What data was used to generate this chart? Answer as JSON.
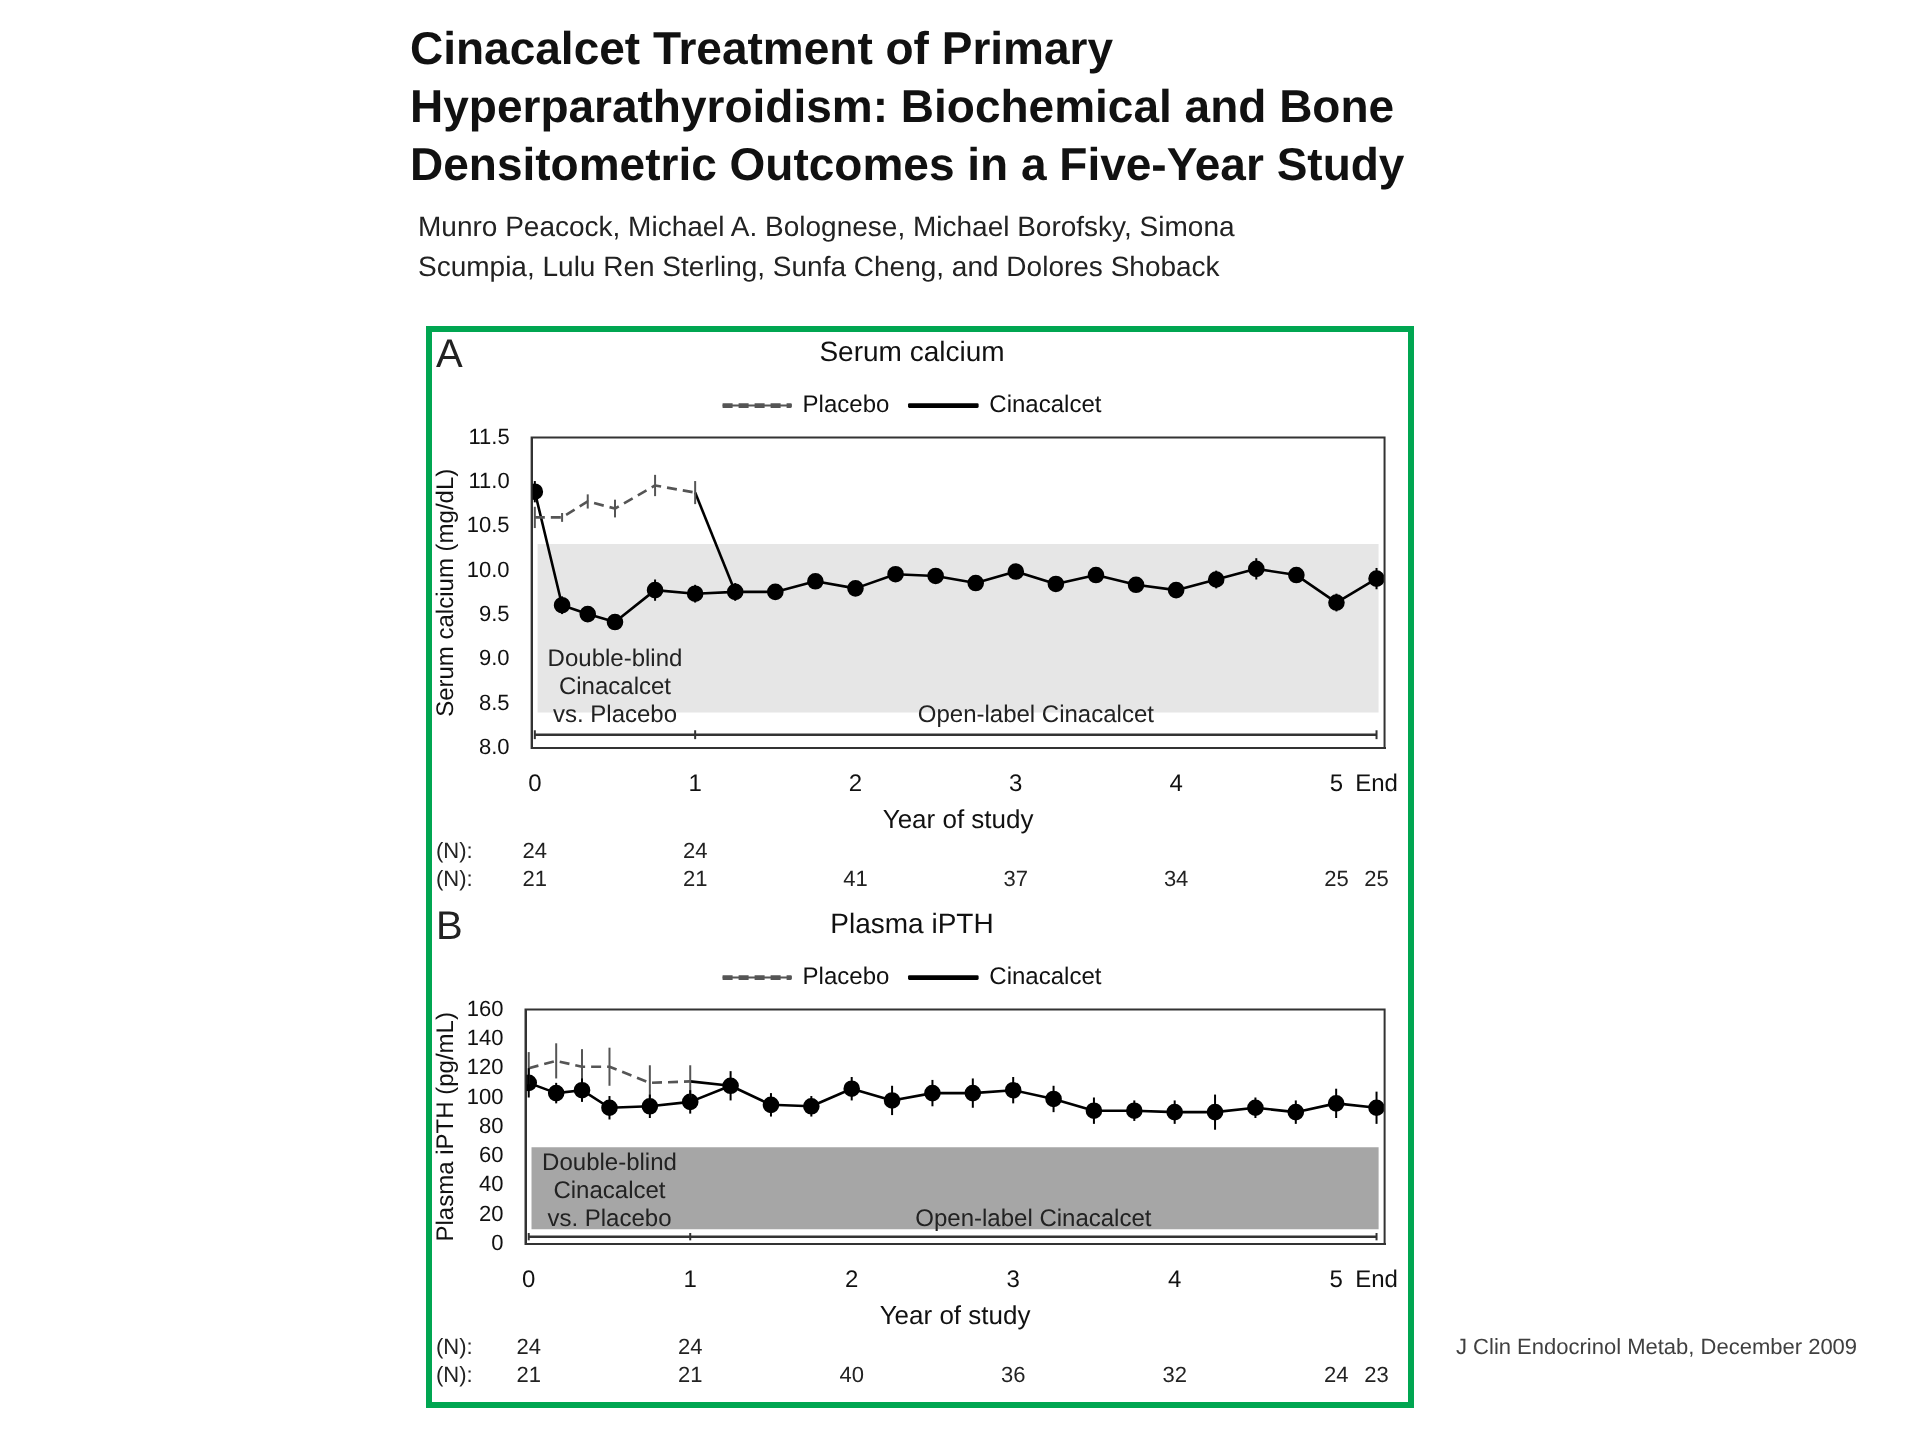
{
  "chart_data": [
    {
      "type": "line",
      "title": "Serum calcium",
      "xlabel": "Year of study",
      "ylabel": "Serum calcium (mg/dL)",
      "xlim": [
        -0.02,
        5.3
      ],
      "xticks": [
        0,
        1,
        2,
        3,
        4,
        5,
        {
          "value": 5.25,
          "label": "End"
        }
      ],
      "ylim": [
        8,
        11.5
      ],
      "yticks": [
        {
          "value": 8,
          "label": "8.0"
        },
        8.5,
        {
          "value": 9,
          "label": "9.0"
        },
        9.5,
        {
          "value": 10,
          "label": "10.0"
        },
        10.5,
        {
          "value": 11,
          "label": "11.0"
        },
        11.5
      ],
      "grid": false,
      "legend": "top",
      "bands": [
        {
          "axis": "y",
          "from": 8.4,
          "to": 10.3,
          "color": "#e6e6e6"
        }
      ],
      "series": [
        {
          "name": "Placebo",
          "color": "#555555",
          "line_style": "dashed",
          "marker": "none",
          "x": [
            0,
            0.17,
            0.33,
            0.5,
            0.75,
            1
          ],
          "values": [
            10.6,
            10.6,
            10.78,
            10.7,
            10.96,
            10.88
          ],
          "errors": [
            0.12,
            0.05,
            0.08,
            0.1,
            0.12,
            0.13
          ]
        },
        {
          "name": "Cinacalcet",
          "color": "#000000",
          "line_style": "solid",
          "marker": "circle",
          "x": [
            0,
            0.17,
            0.33,
            0.5,
            0.75,
            1,
            1.25,
            1.5,
            1.75,
            2,
            2.25,
            2.5,
            2.75,
            3,
            3.25,
            3.5,
            3.75,
            4,
            4.25,
            4.5,
            4.75,
            5,
            5.25
          ],
          "values": [
            10.89,
            9.61,
            9.51,
            9.42,
            9.78,
            9.74,
            9.76,
            9.76,
            9.88,
            9.8,
            9.96,
            9.94,
            9.86,
            9.99,
            9.85,
            9.95,
            9.84,
            9.78,
            9.9,
            10.02,
            9.95,
            9.64,
            9.91
          ],
          "errors": [
            0.12,
            0.1,
            0.08,
            0.08,
            0.12,
            0.1,
            0.1,
            0.08,
            0.08,
            0.08,
            0.08,
            0.08,
            0.07,
            0.08,
            0.08,
            0.08,
            0.07,
            0.08,
            0.1,
            0.12,
            0.08,
            0.1,
            0.12
          ]
        },
        {
          "color": "#000000",
          "line_style": "solid",
          "marker": "none",
          "x": [
            1,
            1.25
          ],
          "values": [
            10.88,
            9.76
          ]
        },
        {
          "color": "#333333",
          "line_style": "solid",
          "marker": "none",
          "x": [
            0,
            1,
            5.25
          ],
          "values": [
            8.15,
            8.15,
            8.15
          ],
          "errors": [
            0.05,
            0.05,
            0.05
          ]
        }
      ],
      "annotations": [
        "Cinacalcet Treatment of Primary Hyperparathyroidism: Biochemical and Bone Densitometric Outcomes in a Five-Year Study",
        "Munro Peacock, Michael A. Bolognese, Michael Borofsky, Simona Scumpia, Lulu Ren Sterling, Sunfa Cheng, and Dolores Shoback",
        "A",
        "Double-blind\nCinacalcet\nvs. Placebo",
        "Open-label Cinacalcet",
        "(N):",
        "24",
        "24",
        "(N):",
        "21",
        "21",
        "41",
        "37",
        "34",
        "25",
        "25"
      ]
    },
    {
      "type": "line",
      "title": "Plasma iPTH",
      "xlabel": "Year of study",
      "ylabel": "Plasma iPTH (pg/mL)",
      "xlim": [
        -0.02,
        5.3
      ],
      "xticks": [
        0,
        1,
        2,
        3,
        4,
        5,
        {
          "value": 5.25,
          "label": "End"
        }
      ],
      "ylim": [
        0,
        160
      ],
      "yticks": [
        0,
        20,
        40,
        60,
        80,
        100,
        120,
        140,
        160
      ],
      "grid": false,
      "legend": "top",
      "bands": [
        {
          "axis": "y",
          "from": 10,
          "to": 66,
          "color": "#a6a6a6"
        }
      ],
      "series": [
        {
          "name": "Placebo",
          "color": "#555555",
          "line_style": "dashed",
          "marker": "none",
          "x": [
            0,
            0.17,
            0.33,
            0.5,
            0.75,
            1
          ],
          "values": [
            120,
            125,
            121,
            121,
            110,
            111
          ],
          "errors": [
            11,
            12,
            12,
            13,
            12,
            11
          ]
        },
        {
          "name": "Cinacalcet",
          "color": "#000000",
          "line_style": "solid",
          "marker": "circle",
          "x": [
            0,
            0.17,
            0.33,
            0.5,
            0.75,
            1,
            1.25,
            1.5,
            1.75,
            2,
            2.25,
            2.5,
            2.75,
            3,
            3.25,
            3.5,
            3.75,
            4,
            4.25,
            4.5,
            4.75,
            5,
            5.25
          ],
          "values": [
            110,
            103,
            105,
            93,
            94,
            97,
            108,
            95,
            94,
            106,
            98,
            103,
            103,
            105,
            99,
            91,
            91,
            90,
            90,
            93,
            90,
            96,
            93
          ],
          "errors": [
            10,
            7,
            8,
            8,
            8,
            8,
            10,
            8,
            7,
            8,
            10,
            9,
            10,
            9,
            9,
            9,
            7,
            8,
            12,
            7,
            8,
            10,
            11
          ]
        },
        {
          "color": "#000000",
          "line_style": "solid",
          "marker": "none",
          "x": [
            1,
            1.25
          ],
          "values": [
            111,
            108
          ]
        },
        {
          "color": "#333333",
          "line_style": "solid",
          "marker": "none",
          "x": [
            0,
            1,
            5.25
          ],
          "values": [
            5,
            5,
            5
          ],
          "errors": [
            2.5,
            2.5,
            2.5
          ]
        }
      ],
      "annotations": [
        "B",
        "Double-blind\nCinacalcet\nvs. Placebo",
        "Open-label Cinacalcet",
        "(N):",
        "24",
        "24",
        "(N):",
        "21",
        "21",
        "40",
        "36",
        "32",
        "24",
        "23",
        "J Clin Endocrinol Metab, December 2009"
      ]
    }
  ]
}
